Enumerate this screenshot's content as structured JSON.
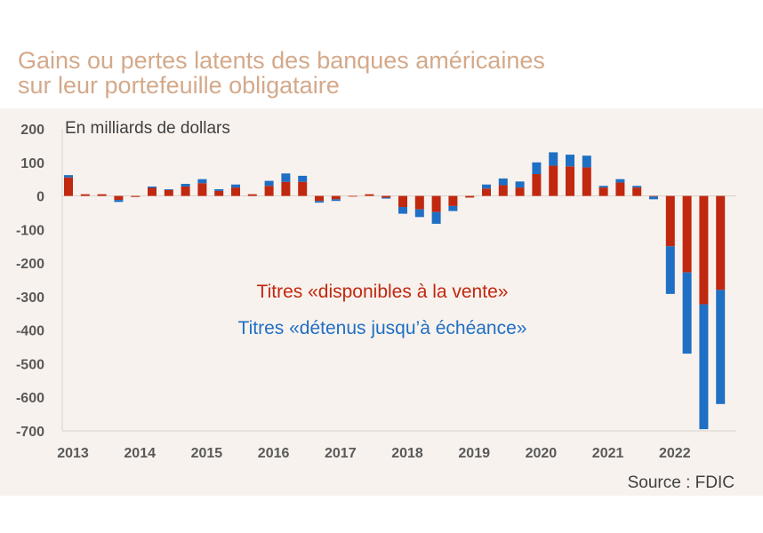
{
  "title": {
    "line1": "Gains ou pertes latents des banques américaines",
    "line2": "sur leur portefeuille obligataire"
  },
  "colors": {
    "title": "#d4a98a",
    "afs": "#c0280f",
    "htm": "#1f6fc4",
    "axis_text": "#595959",
    "background_panel": "#f8f2ee"
  },
  "chart_data": {
    "type": "bar",
    "stacked": true,
    "unit_label": "En milliards de dollars",
    "ylim": [
      -700,
      200
    ],
    "yticks": [
      "200",
      "100",
      "0",
      "-100",
      "-200",
      "-300",
      "-400",
      "-500",
      "-600",
      "-700"
    ],
    "xtick_labels": [
      "2013",
      "2014",
      "2015",
      "2016",
      "2017",
      "2018",
      "2019",
      "2020",
      "2021",
      "2022"
    ],
    "categories": [
      "2013 T1",
      "2013 T2",
      "2013 T3",
      "2013 T4",
      "2014 T1",
      "2014 T2",
      "2014 T3",
      "2014 T4",
      "2015 T1",
      "2015 T2",
      "2015 T3",
      "2015 T4",
      "2016 T1",
      "2016 T2",
      "2016 T3",
      "2016 T4",
      "2017 T1",
      "2017 T2",
      "2017 T3",
      "2017 T4",
      "2018 T1",
      "2018 T2",
      "2018 T3",
      "2018 T4",
      "2019 T1",
      "2019 T2",
      "2019 T3",
      "2019 T4",
      "2020 T1",
      "2020 T2",
      "2020 T3",
      "2020 T4",
      "2021 T1",
      "2021 T2",
      "2021 T3",
      "2021 T4",
      "2022 T1",
      "2022 T2",
      "2022 T3",
      "2022 T4"
    ],
    "series": [
      {
        "name": "Titres «disponibles à la vente»",
        "values": [
          55,
          5,
          5,
          -12,
          -3,
          24,
          18,
          28,
          38,
          15,
          25,
          5,
          30,
          42,
          42,
          -15,
          -10,
          -2,
          5,
          -5,
          -33,
          -40,
          -48,
          -30,
          -5,
          22,
          32,
          25,
          65,
          90,
          88,
          85,
          25,
          40,
          25,
          -2,
          -150,
          -228,
          -323,
          -280
        ]
      },
      {
        "name": "Titres «détenus jusqu'à échéance»",
        "values": [
          7,
          0,
          0,
          -6,
          0,
          4,
          2,
          8,
          12,
          5,
          9,
          0,
          15,
          25,
          18,
          -5,
          -5,
          0,
          0,
          -3,
          -20,
          -23,
          -35,
          -15,
          0,
          12,
          20,
          18,
          35,
          40,
          35,
          35,
          5,
          10,
          5,
          -8,
          -142,
          -242,
          -372,
          -340
        ]
      }
    ],
    "legend": {
      "afs": "Titres «disponibles à la vente»",
      "htm": "Titres «détenus jusqu’à échéance»"
    },
    "source": "Source :  FDIC"
  }
}
